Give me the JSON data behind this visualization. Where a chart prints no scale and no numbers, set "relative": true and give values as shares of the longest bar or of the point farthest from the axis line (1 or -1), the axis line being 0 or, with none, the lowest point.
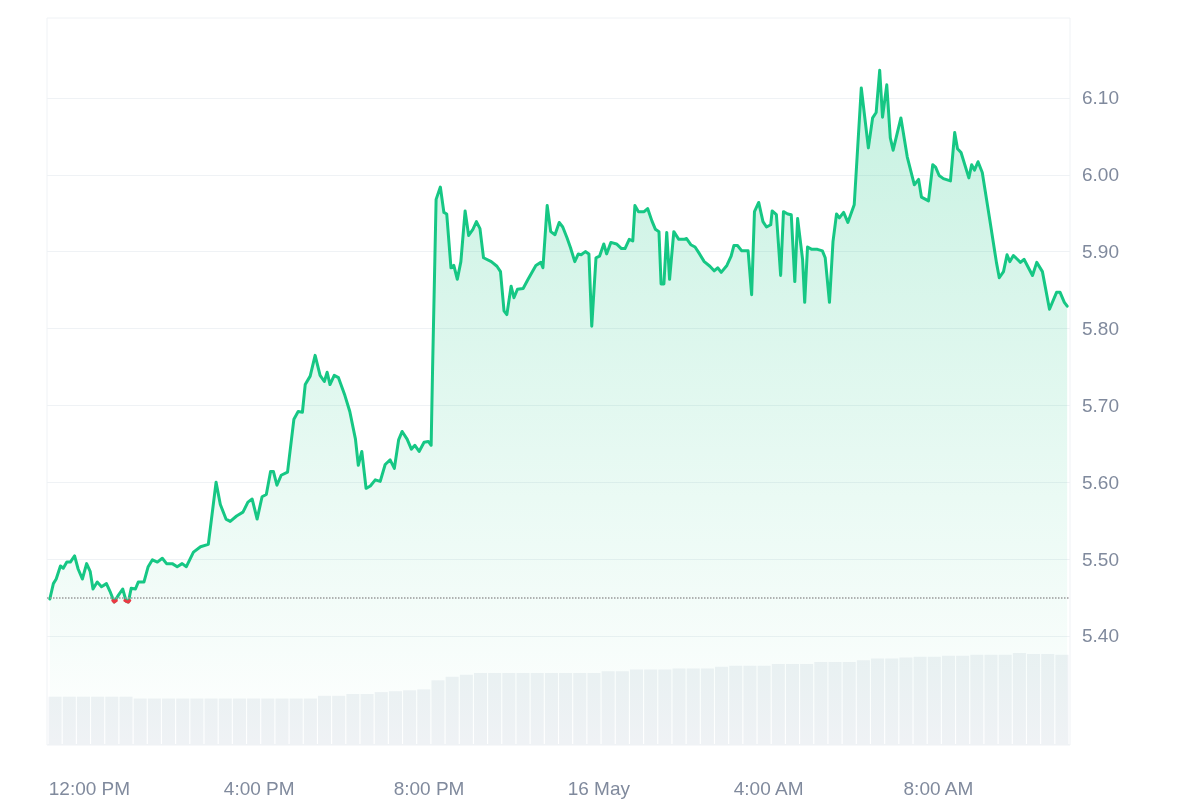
{
  "chart_data": [
    {
      "type": "area",
      "x": [
        "--05-15T11:04",
        "--05-15T11:09",
        "--05-15T11:13",
        "--05-15T11:19",
        "--05-15T11:23",
        "--05-15T11:28",
        "--05-15T11:33",
        "--05-15T11:39",
        "--05-15T11:44",
        "--05-15T11:50",
        "--05-15T11:56",
        "--05-15T12:01",
        "--05-15T12:05",
        "--05-15T12:11",
        "--05-15T12:17",
        "--05-15T12:24",
        "--05-15T12:29",
        "--05-15T12:35",
        "--05-15T12:41",
        "--05-15T12:47",
        "--05-15T12:52",
        "--05-15T12:55",
        "--05-15T12:59",
        "--05-15T13:05",
        "--05-15T13:09",
        "--05-15T13:17",
        "--05-15T13:23",
        "--05-15T13:29",
        "--05-15T13:36",
        "--05-15T13:43",
        "--05-15T13:49",
        "--05-15T13:57",
        "--05-15T14:04",
        "--05-15T14:11",
        "--05-15T14:17",
        "--05-15T14:27",
        "--05-15T14:37",
        "--05-15T14:48",
        "--05-15T14:59",
        "--05-15T15:05",
        "--05-15T15:13",
        "--05-15T15:19",
        "--05-15T15:28",
        "--05-15T15:37",
        "--05-15T15:44",
        "--05-15T15:50",
        "--05-15T15:57",
        "--05-15T16:04",
        "--05-15T16:10",
        "--05-15T16:16",
        "--05-15T16:20",
        "--05-15T16:25",
        "--05-15T16:31",
        "--05-15T16:40",
        "--05-15T16:49",
        "--05-15T16:55",
        "--05-15T17:01",
        "--05-15T17:05",
        "--05-15T17:12",
        "--05-15T17:19",
        "--05-15T17:26",
        "--05-15T17:32",
        "--05-15T17:36",
        "--05-15T17:40",
        "--05-15T17:46",
        "--05-15T17:52",
        "--05-15T18:01",
        "--05-15T18:08",
        "--05-15T18:16",
        "--05-15T18:20",
        "--05-15T18:25",
        "--05-15T18:31",
        "--05-15T18:37",
        "--05-15T18:44",
        "--05-15T18:51",
        "--05-15T18:58",
        "--05-15T19:05",
        "--05-15T19:11",
        "--05-15T19:17",
        "--05-15T19:22",
        "--05-15T19:29",
        "--05-15T19:35",
        "--05-15T19:40",
        "--05-15T19:46",
        "--05-15T19:53",
        "--05-15T19:59",
        "--05-15T20:03",
        "--05-15T20:05",
        "--05-15T20:10",
        "--05-15T20:16",
        "--05-15T20:21",
        "--05-15T20:25",
        "--05-15T20:31",
        "--05-15T20:35",
        "--05-15T20:40",
        "--05-15T20:45",
        "--05-15T20:51",
        "--05-15T20:56",
        "--05-15T21:02",
        "--05-15T21:07",
        "--05-15T21:12",
        "--05-15T21:17",
        "--05-15T21:28",
        "--05-15T21:36",
        "--05-15T21:41",
        "--05-15T21:46",
        "--05-15T21:50",
        "--05-15T21:56",
        "--05-15T22:00",
        "--05-15T22:05",
        "--05-15T22:13",
        "--05-15T22:20",
        "--05-15T22:31",
        "--05-15T22:38",
        "--05-15T22:41",
        "--05-15T22:47",
        "--05-15T22:52",
        "--05-15T22:58",
        "--05-15T23:04",
        "--05-15T23:09",
        "--05-15T23:15",
        "--05-15T23:20",
        "--05-15T23:26",
        "--05-15T23:31",
        "--05-15T23:35",
        "--05-15T23:41",
        "--05-15T23:46",
        "--05-15T23:50",
        "--05-15T23:56",
        "--05-16T00:01",
        "--05-16T00:07",
        "--05-16T00:11",
        "--05-16T00:17",
        "--05-16T00:25",
        "--05-16T00:32",
        "--05-16T00:37",
        "--05-16T00:43",
        "--05-16T00:48",
        "--05-16T00:51",
        "--05-16T00:56",
        "--05-16T01:04",
        "--05-16T01:09",
        "--05-16T01:15",
        "--05-16T01:20",
        "--05-16T01:25",
        "--05-16T01:28",
        "--05-16T01:32",
        "--05-16T01:36",
        "--05-16T01:40",
        "--05-16T01:46",
        "--05-16T01:53",
        "--05-16T02:00",
        "--05-16T02:04",
        "--05-16T02:10",
        "--05-16T02:16",
        "--05-16T02:21",
        "--05-16T02:29",
        "--05-16T02:37",
        "--05-16T02:43",
        "--05-16T02:48",
        "--05-16T02:53",
        "--05-16T03:01",
        "--05-16T03:07",
        "--05-16T03:11",
        "--05-16T03:16",
        "--05-16T03:22",
        "--05-16T03:31",
        "--05-16T03:36",
        "--05-16T03:40",
        "--05-16T03:46",
        "--05-16T03:52",
        "--05-16T03:57",
        "--05-16T04:03",
        "--05-16T04:05",
        "--05-16T04:11",
        "--05-16T04:17",
        "--05-16T04:21",
        "--05-16T04:27",
        "--05-16T04:32",
        "--05-16T04:37",
        "--05-16T04:41",
        "--05-16T04:48",
        "--05-16T04:51",
        "--05-16T04:55",
        "--05-16T05:01",
        "--05-16T05:09",
        "--05-16T05:16",
        "--05-16T05:20",
        "--05-16T05:26",
        "--05-16T05:31",
        "--05-16T05:36",
        "--05-16T05:40",
        "--05-16T05:46",
        "--05-16T05:52",
        "--05-16T06:01",
        "--05-16T06:11",
        "--05-16T06:21",
        "--05-16T06:27",
        "--05-16T06:32",
        "--05-16T06:37",
        "--05-16T06:41",
        "--05-16T06:47",
        "--05-16T06:52",
        "--05-16T06:56",
        "--05-16T07:07",
        "--05-16T07:16",
        "--05-16T07:26",
        "--05-16T07:32",
        "--05-16T07:36",
        "--05-16T07:46",
        "--05-16T07:52",
        "--05-16T07:56",
        "--05-16T08:01",
        "--05-16T08:07",
        "--05-16T08:17",
        "--05-16T08:23",
        "--05-16T08:27",
        "--05-16T08:32",
        "--05-16T08:43",
        "--05-16T08:47",
        "--05-16T08:51",
        "--05-16T08:56",
        "--05-16T09:02",
        "--05-16T09:12",
        "--05-16T09:22",
        "--05-16T09:26",
        "--05-16T09:32",
        "--05-16T09:37",
        "--05-16T09:41",
        "--05-16T09:46",
        "--05-16T09:56",
        "--05-16T10:01",
        "--05-16T10:13",
        "--05-16T10:19",
        "--05-16T10:27",
        "--05-16T10:37",
        "--05-16T10:47",
        "--05-16T10:52",
        "--05-16T10:58",
        "--05-16T11:02"
      ],
      "series": [
        {
          "color": "#16c784",
          "values": [
            5.448,
            5.468,
            5.474,
            5.491,
            5.488,
            5.496,
            5.496,
            5.504,
            5.487,
            5.474,
            5.494,
            5.484,
            5.461,
            5.47,
            5.464,
            5.468,
            5.458,
            5.444,
            5.453,
            5.461,
            5.445,
            5.444,
            5.462,
            5.461,
            5.47,
            5.47,
            5.49,
            5.499,
            5.496,
            5.501,
            5.494,
            5.494,
            5.49,
            5.494,
            5.49,
            5.509,
            5.516,
            5.519,
            5.6,
            5.571,
            5.552,
            5.549,
            5.556,
            5.561,
            5.574,
            5.578,
            5.552,
            5.581,
            5.584,
            5.614,
            5.614,
            5.596,
            5.609,
            5.613,
            5.682,
            5.692,
            5.691,
            5.727,
            5.738,
            5.765,
            5.739,
            5.731,
            5.743,
            5.727,
            5.739,
            5.736,
            5.713,
            5.692,
            5.656,
            5.622,
            5.64,
            5.592,
            5.595,
            5.603,
            5.601,
            5.623,
            5.629,
            5.618,
            5.655,
            5.666,
            5.656,
            5.643,
            5.648,
            5.64,
            5.652,
            5.653,
            5.648,
            5.747,
            5.968,
            5.984,
            5.951,
            5.949,
            5.879,
            5.882,
            5.864,
            5.887,
            5.953,
            5.921,
            5.929,
            5.939,
            5.93,
            5.892,
            5.887,
            5.881,
            5.874,
            5.823,
            5.818,
            5.855,
            5.84,
            5.851,
            5.852,
            5.864,
            5.882,
            5.886,
            5.879,
            5.96,
            5.926,
            5.922,
            5.938,
            5.932,
            5.918,
            5.905,
            5.887,
            5.897,
            5.896,
            5.9,
            5.897,
            5.803,
            5.892,
            5.894,
            5.91,
            5.897,
            5.912,
            5.91,
            5.904,
            5.904,
            5.916,
            5.914,
            5.96,
            5.952,
            5.952,
            5.956,
            5.94,
            5.929,
            5.926,
            5.858,
            5.858,
            5.925,
            5.864,
            5.926,
            5.916,
            5.916,
            5.917,
            5.909,
            5.906,
            5.899,
            5.887,
            5.881,
            5.875,
            5.879,
            5.873,
            5.882,
            5.894,
            5.908,
            5.908,
            5.901,
            5.901,
            5.844,
            5.952,
            5.964,
            5.939,
            5.932,
            5.935,
            5.953,
            5.948,
            5.869,
            5.952,
            5.949,
            5.948,
            5.861,
            5.943,
            5.89,
            5.834,
            5.906,
            5.903,
            5.903,
            5.901,
            5.892,
            5.834,
            5.913,
            5.949,
            5.944,
            5.951,
            5.938,
            5.961,
            6.113,
            6.035,
            6.074,
            6.081,
            6.136,
            6.075,
            6.117,
            6.048,
            6.032,
            6.074,
            6.023,
            5.987,
            5.994,
            5.971,
            5.966,
            6.013,
            6.01,
            5.999,
            5.995,
            5.992,
            6.055,
            6.034,
            6.029,
            5.996,
            6.013,
            6.006,
            6.017,
            6.003,
            5.945,
            5.886,
            5.866,
            5.874,
            5.896,
            5.887,
            5.895,
            5.886,
            5.89,
            5.869,
            5.886,
            5.874,
            5.825,
            5.847,
            5.847,
            5.834,
            5.829
          ]
        },
        {
          "type": "line",
          "color": "#ea3943",
          "x": [
            "--05-15T12:33",
            "--05-15T12:35",
            "--05-15T12:38",
            "--05-15T12:43",
            "--05-15T12:50",
            "--05-15T12:52",
            "--05-15T12:55",
            "--05-15T12:57"
          ],
          "values": [
            5.446,
            5.444,
            5.446,
            null,
            5.446,
            5.445,
            5.444,
            5.446
          ]
        }
      ],
      "xlim": [
        "--05-15T11:00",
        "--05-16T11:06"
      ],
      "xticks": [
        {
          "value": "--05-15T12:00",
          "label": "12:00 PM"
        },
        {
          "value": "--05-15T16:00",
          "label": "4:00 PM"
        },
        {
          "value": "--05-15T20:00",
          "label": "8:00 PM"
        },
        {
          "value": "--05-16T00:00",
          "label": "16 May"
        },
        {
          "value": "--05-16T04:00",
          "label": "4:00 AM"
        },
        {
          "value": "--05-16T08:00",
          "label": "8:00 AM"
        }
      ],
      "ylim": [
        5.258,
        6.204
      ],
      "yticks": [
        {
          "value": 5.4,
          "label": "5.40"
        },
        {
          "value": 5.5,
          "label": "5.50"
        },
        {
          "value": 5.6,
          "label": "5.60"
        },
        {
          "value": 5.7,
          "label": "5.70"
        },
        {
          "value": 5.8,
          "label": "5.80"
        },
        {
          "value": 5.9,
          "label": "5.90"
        },
        {
          "value": 6.0,
          "label": "6.00"
        },
        {
          "value": 6.1,
          "label": "6.10"
        }
      ],
      "ref_lines": [
        {
          "axis": "y",
          "value": 5.45,
          "color": "#999999",
          "line_style": "dotted"
        }
      ],
      "grid": "y",
      "marker": "none",
      "line_style": "solid"
    },
    {
      "type": "bar",
      "relative": true,
      "color": "#eff2f5",
      "categories": [
        null,
        null,
        null,
        null,
        null,
        null,
        null,
        null,
        null,
        null,
        null,
        null,
        null,
        null,
        null,
        null,
        null,
        null,
        null,
        null,
        null,
        null,
        null,
        null,
        null,
        null,
        null,
        null,
        null,
        null,
        null,
        null,
        null,
        null,
        null,
        null,
        null,
        null,
        null,
        null,
        null,
        null,
        null,
        null,
        null,
        null,
        null,
        null,
        null,
        null,
        null,
        null,
        null,
        null,
        null,
        null,
        null,
        null,
        null,
        null,
        null,
        null,
        null,
        null,
        null,
        null,
        null,
        null,
        null,
        null,
        null,
        null
      ],
      "values": [
        0.52,
        0.52,
        0.52,
        0.52,
        0.52,
        0.52,
        0.5,
        0.5,
        0.5,
        0.5,
        0.5,
        0.5,
        0.5,
        0.5,
        0.5,
        0.5,
        0.5,
        0.5,
        0.5,
        0.53,
        0.53,
        0.55,
        0.55,
        0.57,
        0.58,
        0.59,
        0.6,
        0.7,
        0.74,
        0.76,
        0.78,
        0.78,
        0.78,
        0.78,
        0.78,
        0.78,
        0.78,
        0.78,
        0.78,
        0.8,
        0.8,
        0.82,
        0.82,
        0.82,
        0.83,
        0.83,
        0.83,
        0.85,
        0.86,
        0.86,
        0.86,
        0.88,
        0.88,
        0.88,
        0.9,
        0.9,
        0.9,
        0.92,
        0.94,
        0.94,
        0.95,
        0.96,
        0.96,
        0.97,
        0.97,
        0.98,
        0.98,
        0.98,
        1,
        0.99,
        0.99,
        0.98
      ]
    }
  ]
}
